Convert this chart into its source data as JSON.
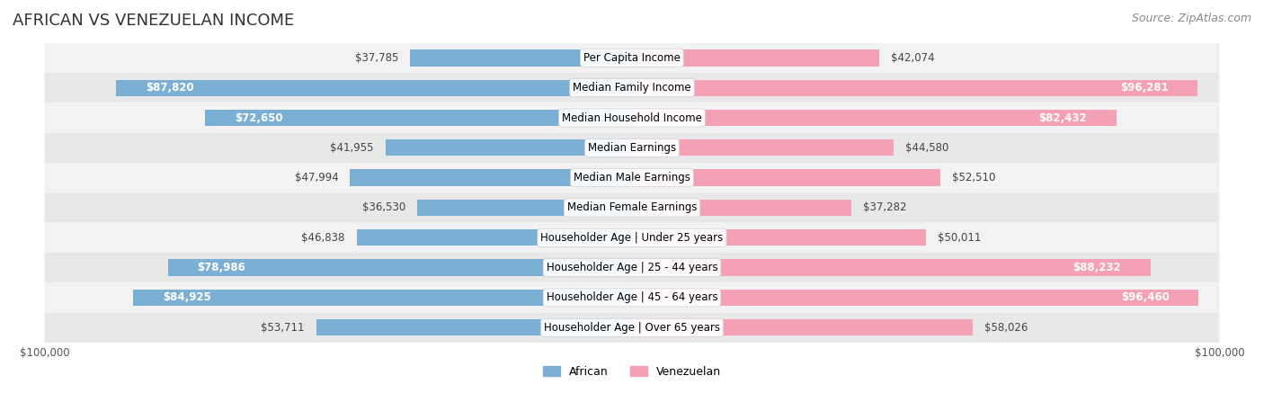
{
  "title": "AFRICAN VS VENEZUELAN INCOME",
  "source": "Source: ZipAtlas.com",
  "categories": [
    "Per Capita Income",
    "Median Family Income",
    "Median Household Income",
    "Median Earnings",
    "Median Male Earnings",
    "Median Female Earnings",
    "Householder Age | Under 25 years",
    "Householder Age | 25 - 44 years",
    "Householder Age | 45 - 64 years",
    "Householder Age | Over 65 years"
  ],
  "african_values": [
    37785,
    87820,
    72650,
    41955,
    47994,
    36530,
    46838,
    78986,
    84925,
    53711
  ],
  "venezuelan_values": [
    42074,
    96281,
    82432,
    44580,
    52510,
    37282,
    50011,
    88232,
    96460,
    58026
  ],
  "african_color": "#7BAFD4",
  "venezuelan_color": "#F4A0B5",
  "african_color_dark": "#5B9DC8",
  "venezuelan_color_dark": "#F080A0",
  "axis_max": 100000,
  "background_color": "#ffffff",
  "row_bg_color": "#f0f0f0",
  "row_bg_color2": "#e8e8e8",
  "label_bg_color": "#f5f5f5",
  "african_label": "African",
  "venezuelan_label": "Venezuelan",
  "title_fontsize": 13,
  "source_fontsize": 9,
  "value_fontsize": 8.5,
  "category_fontsize": 8.5,
  "legend_fontsize": 9,
  "axis_label_fontsize": 8.5
}
